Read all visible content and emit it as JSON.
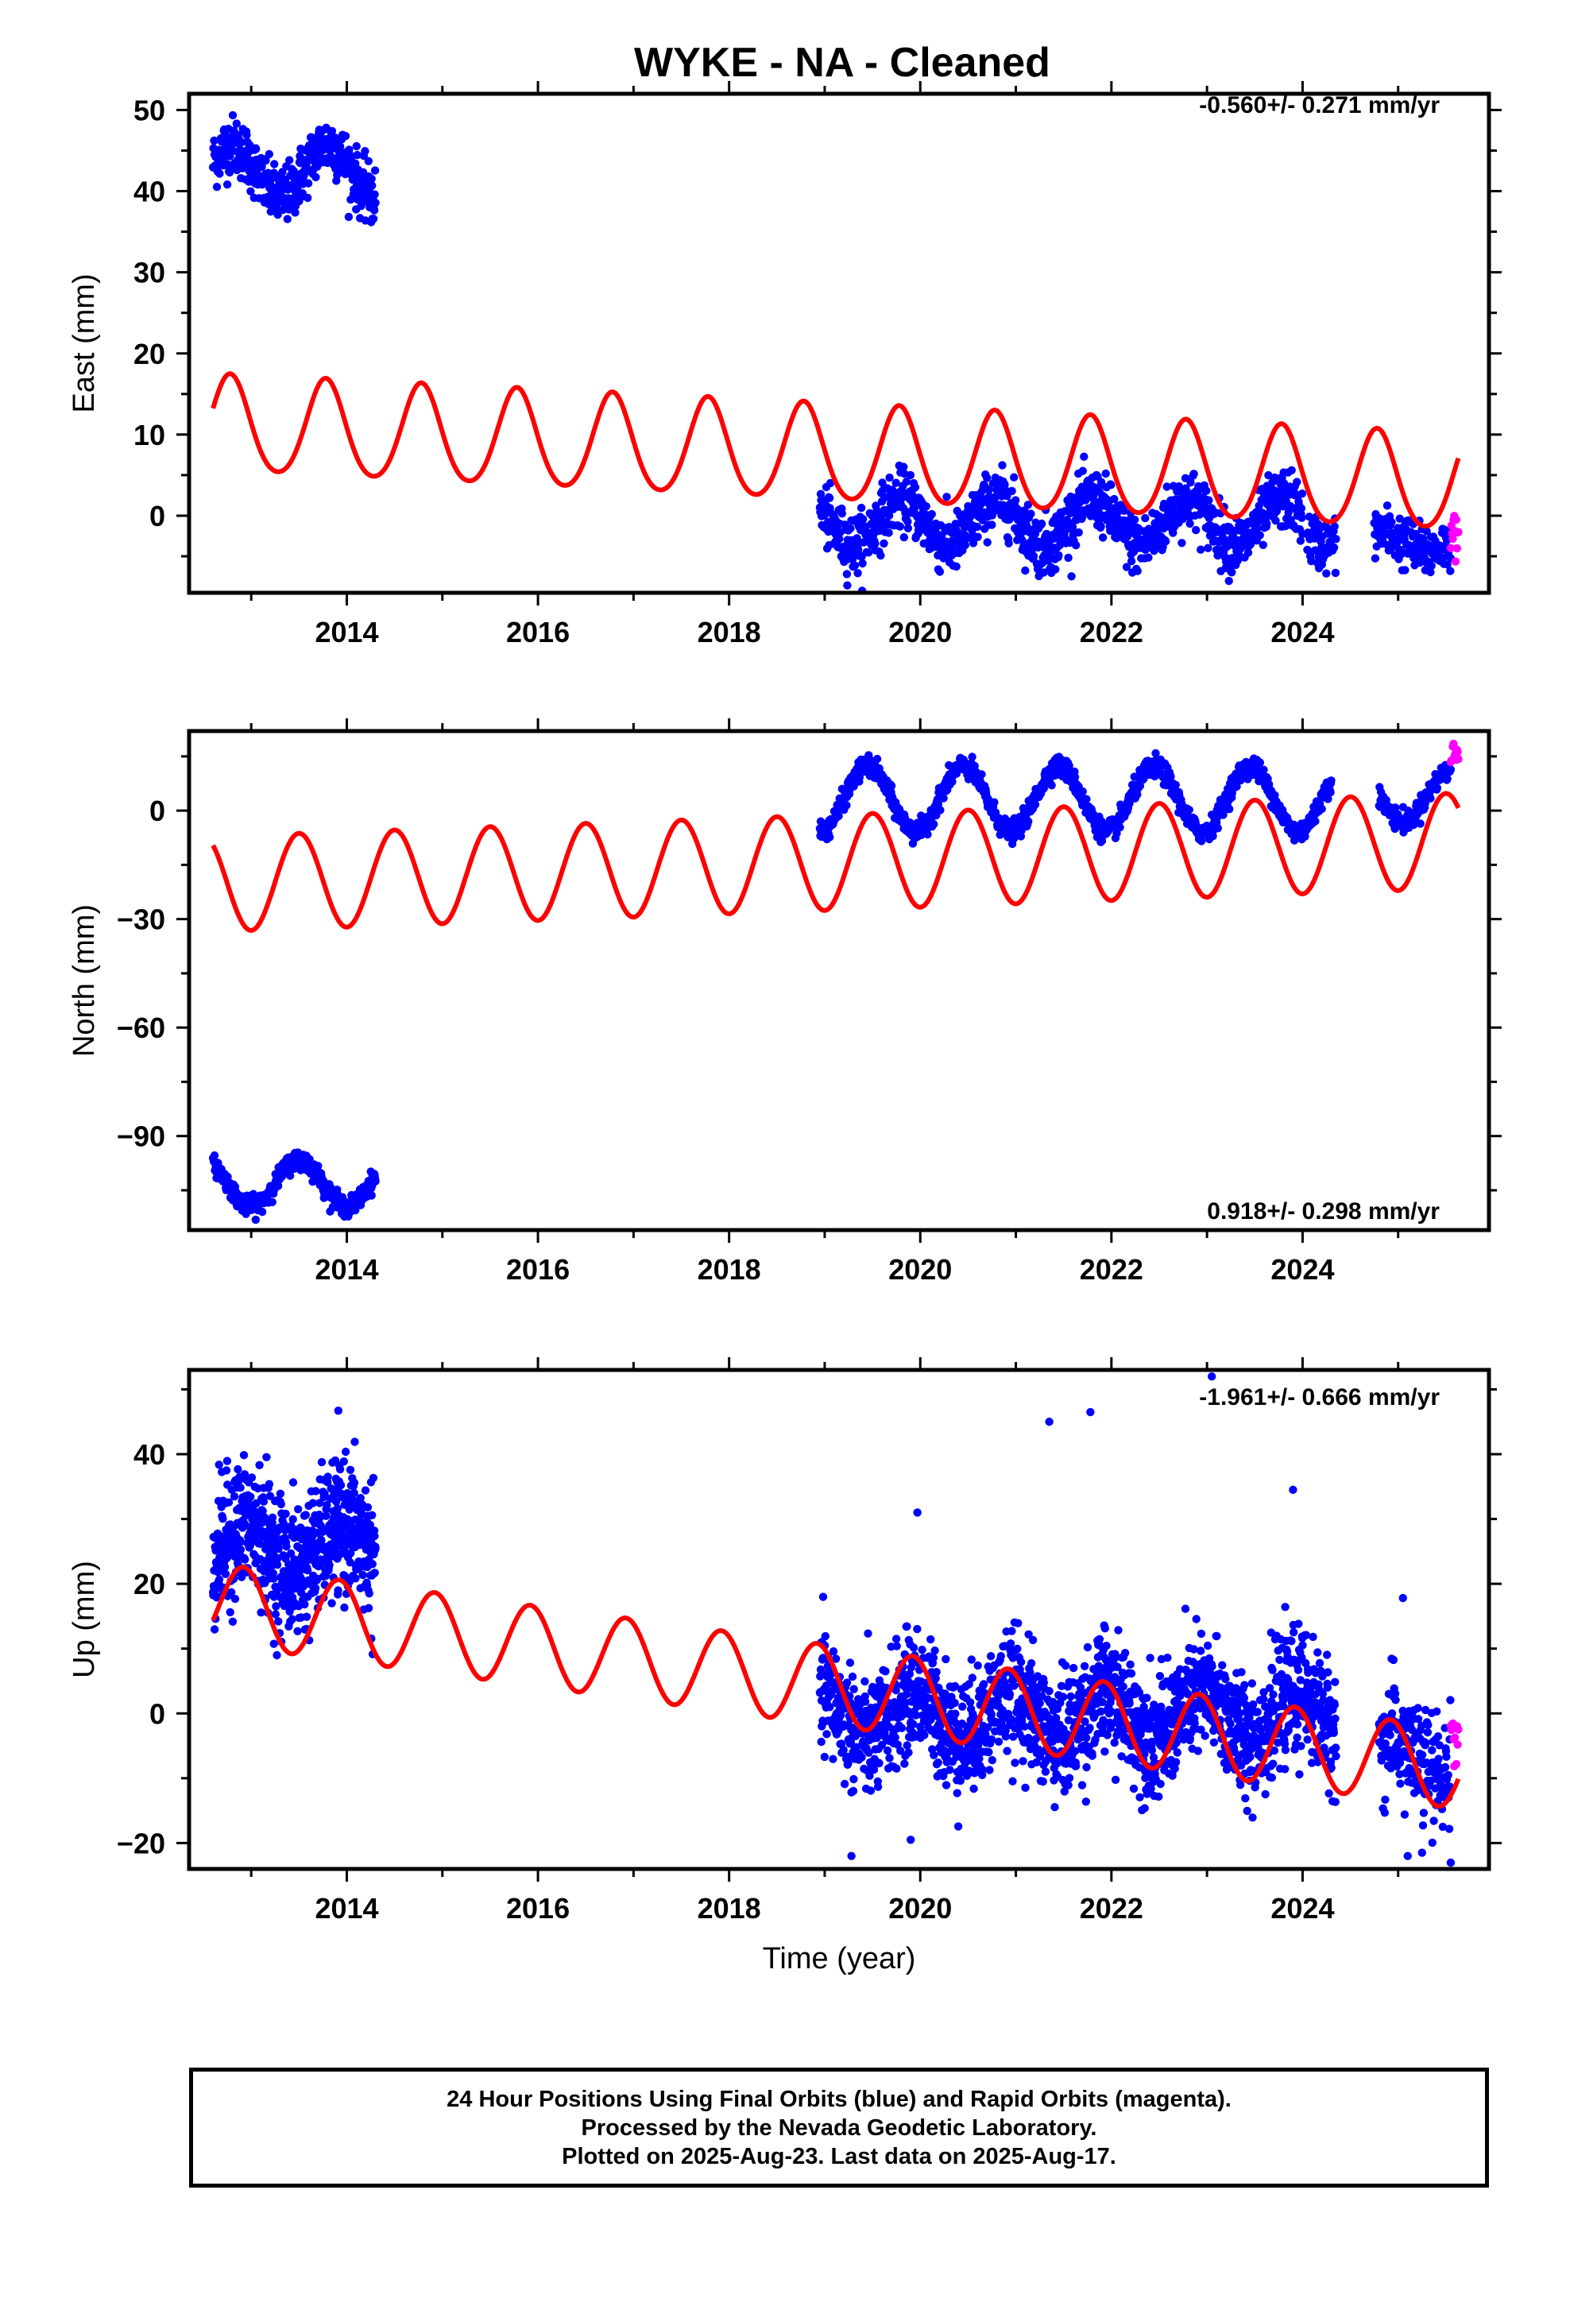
{
  "title": "WYKE  - NA - Cleaned",
  "footer": {
    "line1": "24 Hour Positions Using Final Orbits (blue) and Rapid Orbits (magenta).",
    "line2": "Processed by the Nevada Geodetic Laboratory.",
    "line3": "Plotted on 2025-Aug-23. Last data on 2025-Aug-17."
  },
  "colors": {
    "final_orbits": "#0000ff",
    "rapid_orbits": "#ff00ff",
    "model": "#ff0000",
    "frame": "#000000"
  },
  "chart_data": [
    {
      "type": "scatter",
      "panel": "east",
      "ylabel": "East (mm)",
      "xlabel": "",
      "rate_label": "-0.560+/- 0.271 mm/yr",
      "xlim": [
        2012.35,
        2025.95
      ],
      "ylim": [
        -9.5,
        52
      ],
      "xticks": [
        2014,
        2016,
        2018,
        2020,
        2022,
        2024
      ],
      "yticks": [
        0,
        10,
        20,
        30,
        40,
        50
      ],
      "grid": false,
      "series": [
        {
          "kind": "final_orbits",
          "segments": [
            {
              "x0": 2012.6,
              "x1": 2014.3,
              "mean": 42.5,
              "amp": 3.2,
              "phase_peak": 0.8,
              "noise": 1.8,
              "n": 420
            },
            {
              "x0": 2018.95,
              "x1": 2024.0,
              "mean": -0.8,
              "amp": 2.8,
              "phase_peak": 0.8,
              "noise": 1.8,
              "n": 1200
            },
            {
              "x0": 2024.05,
              "x1": 2024.35,
              "mean": -2.8,
              "amp": 0.8,
              "phase_peak": 0.8,
              "noise": 1.6,
              "n": 60
            },
            {
              "x0": 2024.75,
              "x1": 2025.55,
              "mean": -3.2,
              "amp": 1.2,
              "phase_peak": 0.8,
              "noise": 1.6,
              "n": 160
            }
          ]
        },
        {
          "kind": "rapid_orbits",
          "segments": [
            {
              "x0": 2025.55,
              "x1": 2025.63,
              "mean": -2.5,
              "amp": 0,
              "phase_peak": 0.8,
              "noise": 1.2,
              "n": 12
            }
          ]
        },
        {
          "kind": "model",
          "a": 11.1,
          "b": -0.56,
          "t0": 2012.6,
          "amp": 5.9,
          "phase_peak": 0.78,
          "semi_amp": 0.6,
          "x0": 2012.6,
          "x1": 2025.63
        }
      ]
    },
    {
      "type": "scatter",
      "panel": "north",
      "ylabel": "North (mm)",
      "xlabel": "",
      "rate_label": "0.918+/- 0.298 mm/yr",
      "xlim": [
        2012.35,
        2025.95
      ],
      "ylim": [
        -116,
        22
      ],
      "xticks": [
        2014,
        2016,
        2018,
        2020,
        2022,
        2024
      ],
      "yticks": [
        0,
        -30,
        -60,
        -90
      ],
      "grid": false,
      "series": [
        {
          "kind": "final_orbits",
          "segments": [
            {
              "x0": 2012.6,
              "x1": 2014.3,
              "mean": -103,
              "amp": 6.5,
              "phase_peak": 0.5,
              "noise": 1.3,
              "n": 420
            },
            {
              "x0": 2018.95,
              "x1": 2024.3,
              "mean": 3.2,
              "amp": 9.0,
              "phase_peak": 0.45,
              "noise": 1.4,
              "n": 1250
            },
            {
              "x0": 2024.8,
              "x1": 2025.55,
              "mean": 4.0,
              "amp": 7.0,
              "phase_peak": 0.55,
              "noise": 1.4,
              "n": 150
            }
          ]
        },
        {
          "kind": "rapid_orbits",
          "segments": [
            {
              "x0": 2025.55,
              "x1": 2025.63,
              "mean": 15.0,
              "amp": 0,
              "phase_peak": 0.5,
              "noise": 2.0,
              "n": 12
            }
          ]
        },
        {
          "kind": "model",
          "a": -20.3,
          "b": 0.918,
          "t0": 2012.6,
          "amp": 13.2,
          "phase_peak": 0.5,
          "semi_amp": 0.0,
          "x0": 2012.6,
          "x1": 2025.63
        }
      ]
    },
    {
      "type": "scatter",
      "panel": "up",
      "ylabel": "Up (mm)",
      "xlabel": "Time (year)",
      "rate_label": "-1.961+/- 0.666 mm/yr",
      "xlim": [
        2012.35,
        2025.95
      ],
      "ylim": [
        -24,
        53
      ],
      "xticks": [
        2014,
        2016,
        2018,
        2020,
        2022,
        2024
      ],
      "yticks": [
        40,
        20,
        0,
        -20
      ],
      "grid": false,
      "series": [
        {
          "kind": "final_orbits",
          "segments": [
            {
              "x0": 2012.6,
              "x1": 2014.3,
              "mean": 25.5,
              "amp": 3.5,
              "phase_peak": 0.95,
              "noise": 5.0,
              "n": 700
            },
            {
              "x0": 2018.95,
              "x1": 2024.35,
              "mean": -0.3,
              "amp": 3.5,
              "phase_peak": 0.95,
              "noise": 4.5,
              "n": 1900
            },
            {
              "x0": 2024.8,
              "x1": 2025.55,
              "mean": -7.0,
              "amp": 3.0,
              "phase_peak": 0.95,
              "noise": 4.5,
              "n": 200
            }
          ]
        },
        {
          "kind": "rapid_orbits",
          "segments": [
            {
              "x0": 2025.55,
              "x1": 2025.63,
              "mean": -3.0,
              "amp": 0,
              "phase_peak": 0.95,
              "noise": 3.0,
              "n": 12
            }
          ]
        },
        {
          "kind": "model",
          "a": 17.0,
          "b": -1.961,
          "t0": 2012.6,
          "amp": 6.2,
          "phase_peak": 0.92,
          "semi_amp": 0.0,
          "x0": 2012.6,
          "x1": 2025.63
        }
      ],
      "outliers": [
        {
          "x": 2021.35,
          "y": 45
        },
        {
          "x": 2021.78,
          "y": 46.5
        },
        {
          "x": 2023.05,
          "y": 52
        },
        {
          "x": 2019.97,
          "y": 31
        },
        {
          "x": 2023.9,
          "y": 34.5
        },
        {
          "x": 2025.05,
          "y": 17.8
        },
        {
          "x": 2019.28,
          "y": -22
        },
        {
          "x": 2019.9,
          "y": -19.5
        },
        {
          "x": 2025.1,
          "y": -22
        },
        {
          "x": 2025.25,
          "y": -21.5
        }
      ]
    }
  ]
}
